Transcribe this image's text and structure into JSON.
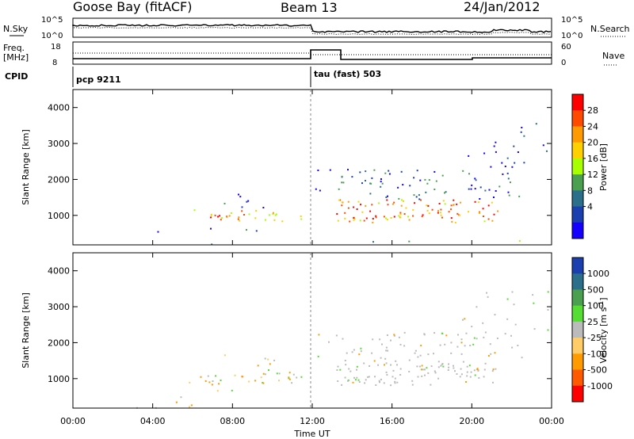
{
  "header": {
    "station": "Goose Bay (fitACF)",
    "beam": "Beam 13",
    "date": "24/Jan/2012"
  },
  "strip": {
    "nsky_label": "N.Sky",
    "nsky_ticks": [
      "10^5",
      "10^0"
    ],
    "nsearch_label": "N.Search",
    "nsearch_ticks": [
      "10^5",
      "10^0"
    ],
    "freq_label": "Freq.",
    "freq_unit": "[MHz]",
    "freq_ticks": [
      "18",
      "8"
    ],
    "nave_label": "Nave",
    "nave_ticks": [
      "60",
      "0"
    ],
    "cpid_label": "CPID",
    "cpid_segments": [
      {
        "name": "pcp 9211",
        "start_hour": 0
      },
      {
        "name": "tau (fast) 503",
        "start_hour": 12
      }
    ]
  },
  "chart_data": [
    {
      "type": "heatmap",
      "parameter": "Power",
      "ylabel": "Slant Range [km]",
      "xlabel": "Time UT",
      "xlim_hours": [
        0,
        24
      ],
      "ylim_km": [
        180,
        4500
      ],
      "y_ticks": [
        "1000",
        "2000",
        "3000",
        "4000"
      ],
      "x_ticks": [
        "00:00",
        "04:00",
        "08:00",
        "12:00",
        "16:00",
        "20:00",
        "00:00"
      ],
      "colorbar_label": "Power [dB]",
      "colorbar_ticks": [
        "28",
        "24",
        "20",
        "16",
        "12",
        "8",
        "4"
      ],
      "colorbar_colors": [
        "#ff0000",
        "#ff4a00",
        "#ff9b00",
        "#ffd000",
        "#a8ff00",
        "#4aa050",
        "#2c6f8a",
        "#1c3fb0",
        "#1500ff"
      ]
    },
    {
      "type": "heatmap",
      "parameter": "Velocity",
      "ylabel": "Slant Range [km]",
      "xlabel": "Time UT",
      "xlim_hours": [
        0,
        24
      ],
      "ylim_km": [
        180,
        4500
      ],
      "y_ticks": [
        "1000",
        "2000",
        "3000",
        "4000"
      ],
      "x_ticks": [
        "00:00",
        "04:00",
        "08:00",
        "12:00",
        "16:00",
        "20:00",
        "00:00"
      ],
      "colorbar_label": "Velocity [m s^-1]",
      "colorbar_ticks": [
        "1000",
        "500",
        "100",
        "25",
        "-25",
        "-100",
        "-500",
        "-1000"
      ],
      "colorbar_colors": [
        "#1c3fb0",
        "#2c6f8a",
        "#4aa050",
        "#55dd33",
        "#bbbbbb",
        "#ffcc66",
        "#ff9b00",
        "#ff5a00",
        "#ff0000"
      ]
    }
  ]
}
